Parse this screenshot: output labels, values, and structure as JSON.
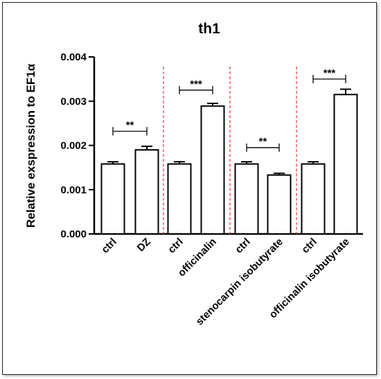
{
  "chart_data": {
    "type": "bar",
    "title": "th1",
    "xlabel": "",
    "ylabel": "Relative exspression to EF1α",
    "ylim": [
      0,
      0.004
    ],
    "yticks": [
      "0.000",
      "0.001",
      "0.002",
      "0.003",
      "0.004"
    ],
    "ytick_values": [
      0,
      0.001,
      0.002,
      0.003,
      0.004
    ],
    "categories": [
      "ctrl",
      "DZ",
      "ctrl",
      "officinalin",
      "ctrl",
      "stenocarpin isobutyrate",
      "ctrl",
      "officinalin isobutyrate"
    ],
    "values": [
      0.00158,
      0.0019,
      0.00158,
      0.00289,
      0.00158,
      0.00133,
      0.00158,
      0.00315
    ],
    "errors": [
      5e-05,
      8e-05,
      5e-05,
      6e-05,
      5e-05,
      4e-05,
      5e-05,
      0.00012
    ],
    "group_separator_color": "#e8453c",
    "bar_fill": "#ffffff",
    "bar_stroke": "#000000",
    "significance": [
      {
        "pair": [
          0,
          1
        ],
        "label": "**",
        "y": 0.00232
      },
      {
        "pair": [
          2,
          3
        ],
        "label": "***",
        "y": 0.00325
      },
      {
        "pair": [
          4,
          5
        ],
        "label": "**",
        "y": 0.00195
      },
      {
        "pair": [
          6,
          7
        ],
        "label": "***",
        "y": 0.0035
      }
    ],
    "grid": false
  }
}
